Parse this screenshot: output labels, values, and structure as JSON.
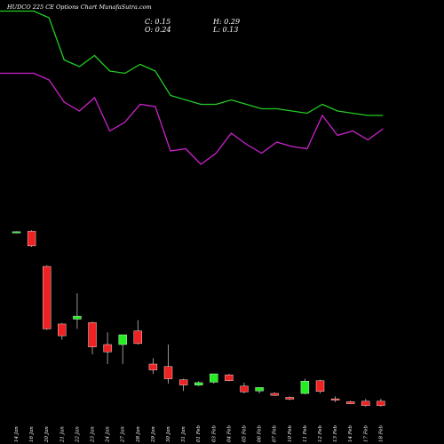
{
  "header": {
    "title": "HUDCO 225 CE Options Chart MunafaSutra.com",
    "close": "C: 0.15",
    "open": "O: 0.24",
    "high": "H: 0.29",
    "low": "L: 0.13"
  },
  "chart_data": [
    {
      "type": "line",
      "x": [
        "14 Jan",
        "16 Jan",
        "20 Jan",
        "21 Jan",
        "22 Jan",
        "23 Jan",
        "24 Jan",
        "27 Jan",
        "28 Jan",
        "29 Jan",
        "30 Jan",
        "31 Jan",
        "01 Feb",
        "03 Feb",
        "04 Feb",
        "05 Feb",
        "06 Feb",
        "07 Feb",
        "10 Feb",
        "11 Feb",
        "12 Feb",
        "13 Feb",
        "14 Feb",
        "17 Feb",
        "18 Feb"
      ],
      "series": [
        {
          "color": "#22cc22",
          "values": [
            0.95,
            0.95,
            0.92,
            0.73,
            0.7,
            0.75,
            0.68,
            0.67,
            0.71,
            0.68,
            0.57,
            0.55,
            0.53,
            0.53,
            0.55,
            0.53,
            0.51,
            0.51,
            0.5,
            0.49,
            0.53,
            0.5,
            0.49,
            0.48,
            0.48
          ]
        },
        {
          "color": "#cc22cc",
          "values": [
            0.67,
            0.67,
            0.64,
            0.54,
            0.5,
            0.56,
            0.41,
            0.45,
            0.53,
            0.52,
            0.32,
            0.33,
            0.26,
            0.31,
            0.4,
            0.35,
            0.31,
            0.36,
            0.34,
            0.33,
            0.48,
            0.39,
            0.41,
            0.37,
            0.42
          ]
        }
      ]
    },
    {
      "type": "candlestick",
      "x": [
        "14 Jan",
        "16 Jan",
        "20 Jan",
        "21 Jan",
        "22 Jan",
        "23 Jan",
        "24 Jan",
        "27 Jan",
        "28 Jan",
        "29 Jan",
        "30 Jan",
        "31 Jan",
        "01 Feb",
        "03 Feb",
        "04 Feb",
        "05 Feb",
        "06 Feb",
        "07 Feb",
        "10 Feb",
        "11 Feb",
        "12 Feb",
        "13 Feb",
        "14 Feb",
        "17 Feb",
        "18 Feb"
      ],
      "candles": [
        {
          "open": 3.7,
          "high": 3.72,
          "low": 3.68,
          "close": 3.71
        },
        {
          "open": 3.72,
          "high": 3.74,
          "low": 3.4,
          "close": 3.42
        },
        {
          "open": 3.0,
          "high": 3.02,
          "low": 1.7,
          "close": 1.72
        },
        {
          "open": 1.82,
          "high": 1.84,
          "low": 1.5,
          "close": 1.58
        },
        {
          "open": 1.92,
          "high": 2.45,
          "low": 1.72,
          "close": 1.98
        },
        {
          "open": 1.85,
          "high": 1.87,
          "low": 1.2,
          "close": 1.35
        },
        {
          "open": 1.4,
          "high": 1.65,
          "low": 1.0,
          "close": 1.25
        },
        {
          "open": 1.4,
          "high": 1.6,
          "low": 1.0,
          "close": 1.6
        },
        {
          "open": 1.68,
          "high": 1.9,
          "low": 1.4,
          "close": 1.42
        },
        {
          "open": 1.0,
          "high": 1.12,
          "low": 0.8,
          "close": 0.88
        },
        {
          "open": 0.95,
          "high": 1.4,
          "low": 0.6,
          "close": 0.7
        },
        {
          "open": 0.68,
          "high": 0.7,
          "low": 0.45,
          "close": 0.57
        },
        {
          "open": 0.57,
          "high": 0.65,
          "low": 0.55,
          "close": 0.62
        },
        {
          "open": 0.63,
          "high": 0.8,
          "low": 0.6,
          "close": 0.8
        },
        {
          "open": 0.78,
          "high": 0.8,
          "low": 0.65,
          "close": 0.66
        },
        {
          "open": 0.55,
          "high": 0.62,
          "low": 0.4,
          "close": 0.43
        },
        {
          "open": 0.45,
          "high": 0.52,
          "low": 0.4,
          "close": 0.52
        },
        {
          "open": 0.4,
          "high": 0.42,
          "low": 0.35,
          "close": 0.36
        },
        {
          "open": 0.32,
          "high": 0.34,
          "low": 0.26,
          "close": 0.28
        },
        {
          "open": 0.4,
          "high": 0.7,
          "low": 0.38,
          "close": 0.65
        },
        {
          "open": 0.66,
          "high": 0.68,
          "low": 0.4,
          "close": 0.44
        },
        {
          "open": 0.29,
          "high": 0.34,
          "low": 0.22,
          "close": 0.26
        },
        {
          "open": 0.23,
          "high": 0.25,
          "low": 0.18,
          "close": 0.19
        },
        {
          "open": 0.24,
          "high": 0.29,
          "low": 0.13,
          "close": 0.15
        },
        {
          "open": 0.24,
          "high": 0.29,
          "low": 0.13,
          "close": 0.15
        }
      ],
      "up_color": "#22ee22",
      "down_color": "#ee2222"
    }
  ]
}
